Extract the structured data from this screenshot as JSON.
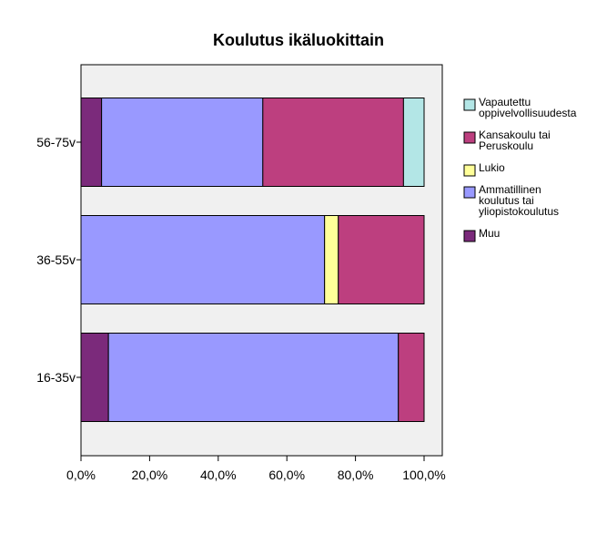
{
  "chart_data": {
    "type": "bar",
    "orientation": "horizontal",
    "stacked": "percent",
    "title": "Koulutus ikäluokittain",
    "xlabel": "",
    "ylabel": "",
    "xlim": [
      0,
      100
    ],
    "x_ticks": [
      "0,0%",
      "20,0%",
      "40,0%",
      "60,0%",
      "80,0%",
      "100,0%"
    ],
    "categories": [
      "56-75v",
      "36-55v",
      "16-35v"
    ],
    "series": [
      {
        "name": "Muu",
        "color": "#7b2a7b",
        "values": [
          6.0,
          0.0,
          8.0
        ]
      },
      {
        "name": "Ammatillinen koulutus tai yliopistokoulutus",
        "color": "#9999ff",
        "values": [
          47.0,
          71.0,
          84.5
        ]
      },
      {
        "name": "Lukio",
        "color": "#ffff99",
        "values": [
          0.0,
          4.0,
          0.0
        ]
      },
      {
        "name": "Kansakoulu tai Peruskoulu",
        "color": "#bd3f7f",
        "values": [
          41.0,
          25.0,
          7.5
        ]
      },
      {
        "name": "Vapautettu oppivelvollisuudesta",
        "color": "#b3e6e6",
        "values": [
          6.0,
          0.0,
          0.0
        ]
      }
    ],
    "legend": {
      "placement": "right",
      "entries": [
        {
          "lines": [
            "Vapautettu",
            "oppivelvollisuudesta"
          ],
          "color": "#b3e6e6"
        },
        {
          "lines": [
            "Kansakoulu tai",
            "Peruskoulu"
          ],
          "color": "#bd3f7f"
        },
        {
          "lines": [
            "Lukio"
          ],
          "color": "#ffff99"
        },
        {
          "lines": [
            "Ammatillinen",
            "koulutus tai",
            "yliopistokoulutus"
          ],
          "color": "#9999ff"
        },
        {
          "lines": [
            "Muu"
          ],
          "color": "#7b2a7b"
        }
      ]
    },
    "plot_background": "#f0f0f0",
    "grid": false
  }
}
